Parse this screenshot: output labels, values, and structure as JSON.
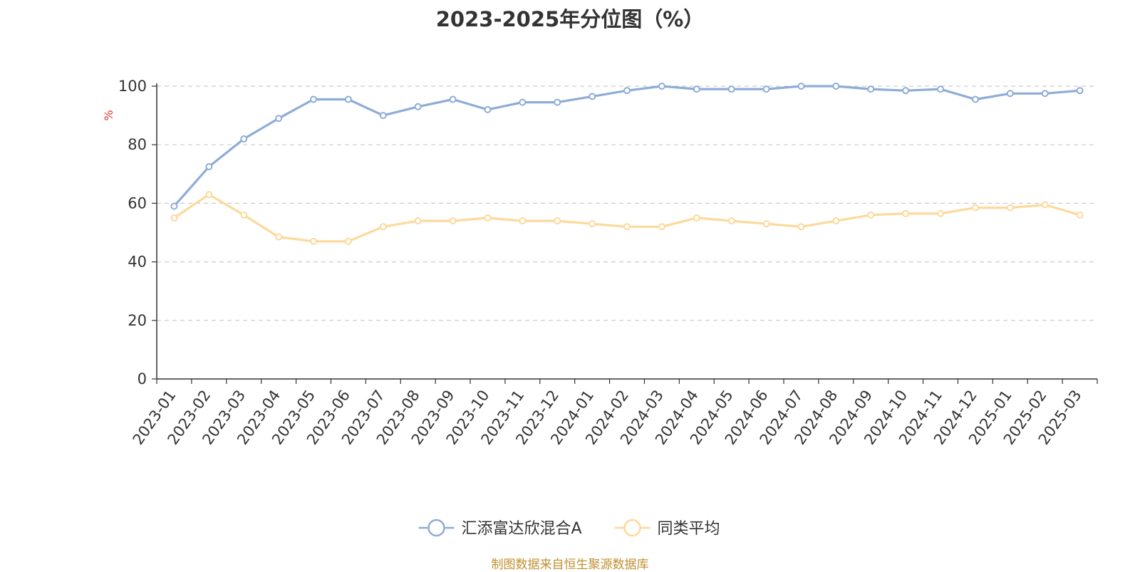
{
  "chart_data": {
    "type": "line",
    "title": "2023-2025年分位图（%）",
    "ylabel": "%",
    "ylim": [
      0,
      100
    ],
    "yticks": [
      0,
      20,
      40,
      60,
      80,
      100
    ],
    "grid": true,
    "legend_position": "bottom",
    "x": [
      "2023-01",
      "2023-02",
      "2023-03",
      "2023-04",
      "2023-05",
      "2023-06",
      "2023-07",
      "2023-08",
      "2023-09",
      "2023-10",
      "2023-11",
      "2023-12",
      "2024-01",
      "2024-02",
      "2024-03",
      "2024-04",
      "2024-05",
      "2024-06",
      "2024-07",
      "2024-08",
      "2024-09",
      "2024-10",
      "2024-11",
      "2024-12",
      "2025-01",
      "2025-02",
      "2025-03"
    ],
    "series": [
      {
        "name": "汇添富达欣混合A",
        "color": "#8eacd8",
        "values": [
          59,
          72.5,
          82,
          89,
          95.5,
          95.5,
          90,
          93,
          95.5,
          92,
          94.5,
          94.5,
          96.5,
          98.5,
          100,
          99,
          99,
          99,
          100,
          100,
          99,
          98.5,
          99,
          95.5,
          97.5,
          97.5,
          98.5
        ]
      },
      {
        "name": "同类平均",
        "color": "#fdd99b",
        "values": [
          55,
          63,
          56,
          48.5,
          47,
          47,
          52,
          54,
          54,
          55,
          54,
          54,
          53,
          52,
          52,
          55,
          54,
          53,
          52,
          54,
          56,
          56.5,
          56.5,
          58.5,
          58.5,
          59.5,
          56
        ]
      }
    ]
  },
  "source": "制图数据来自恒生聚源数据库"
}
